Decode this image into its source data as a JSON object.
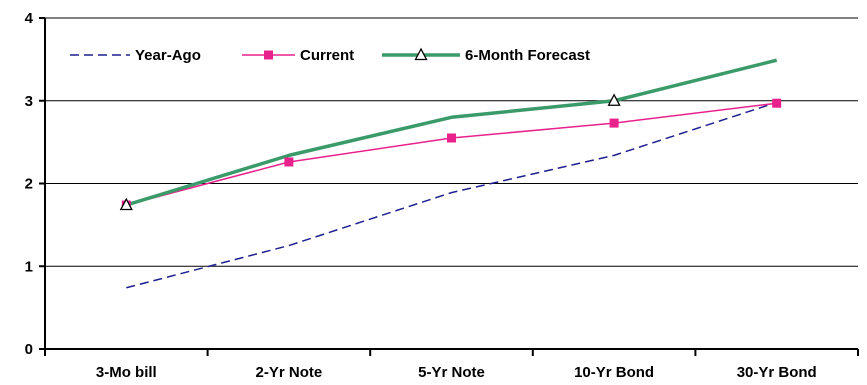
{
  "chart_data": {
    "type": "line",
    "title": "",
    "xlabel": "",
    "ylabel": "",
    "categories": [
      "3-Mo bill",
      "2-Yr Note",
      "5-Yr Note",
      "10-Yr Bond",
      "30-Yr Bond"
    ],
    "ylim": [
      0,
      4
    ],
    "yticks": [
      0,
      1,
      2,
      3,
      4
    ],
    "grid": true,
    "legend_position": "top-left",
    "series": [
      {
        "name": "Year-Ago",
        "values": [
          0.74,
          1.25,
          1.89,
          2.34,
          2.98
        ],
        "color": "#1f1f8f",
        "style": "dashed",
        "marker": "none"
      },
      {
        "name": "Current",
        "values": [
          1.74,
          2.26,
          2.55,
          2.73,
          2.97
        ],
        "color": "#e8218c",
        "style": "solid",
        "marker": "square"
      },
      {
        "name": "6-Month Forecast",
        "values": [
          1.74,
          2.34,
          2.8,
          3.0,
          3.49
        ],
        "color": "#3a9a6a",
        "style": "solid",
        "marker": "triangle",
        "marker_indices": [
          0,
          3
        ]
      }
    ]
  }
}
